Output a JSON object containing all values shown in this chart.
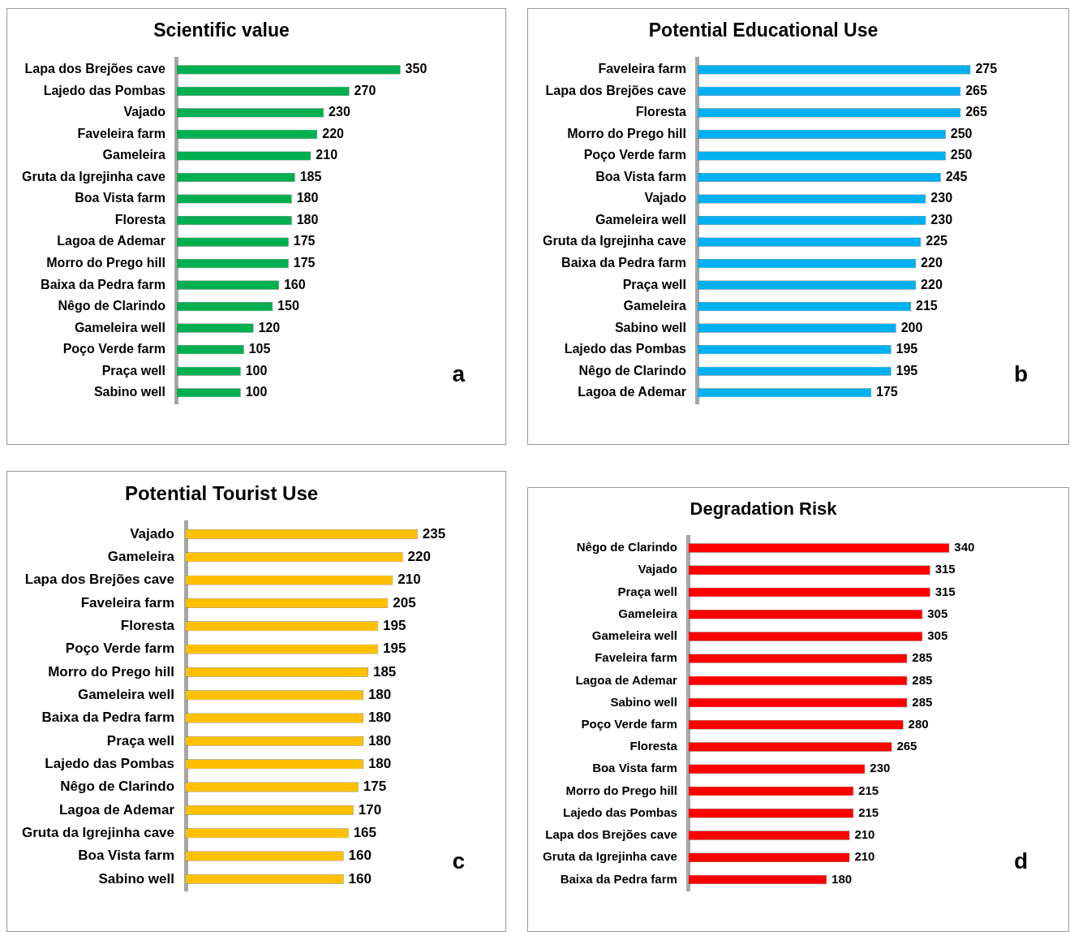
{
  "chart_data": [
    {
      "type": "bar",
      "orientation": "horizontal",
      "title": "Scientific value",
      "color": "#00b050",
      "data_labels": true,
      "tick_labels": "y",
      "annotations": [
        "a"
      ],
      "categories": [
        "Lapa dos Brejões cave",
        "Lajedo das Pombas",
        "Vajado",
        "Faveleira farm",
        "Gameleira",
        "Gruta da Igrejinha cave",
        "Boa Vista farm",
        "Floresta",
        "Lagoa de Ademar",
        "Morro do Prego hill",
        "Baixa da Pedra farm",
        "Nêgo de Clarindo",
        "Gameleira well",
        "Poço Verde farm",
        "Praça well",
        "Sabino well"
      ],
      "values": [
        350,
        270,
        230,
        220,
        210,
        185,
        180,
        180,
        175,
        175,
        160,
        150,
        120,
        105,
        100,
        100
      ]
    },
    {
      "type": "bar",
      "orientation": "horizontal",
      "title": "Potential Educational Use",
      "color": "#00b0f0",
      "data_labels": true,
      "tick_labels": "y",
      "annotations": [
        "b"
      ],
      "categories": [
        "Faveleira farm",
        "Lapa dos Brejões cave",
        "Floresta",
        "Morro do Prego hill",
        "Poço Verde farm",
        "Boa Vista farm",
        "Vajado",
        "Gameleira well",
        "Gruta da Igrejinha cave",
        "Baixa da Pedra farm",
        "Praça well",
        "Gameleira",
        "Sabino well",
        "Lajedo das Pombas",
        "Nêgo de Clarindo",
        "Lagoa de Ademar"
      ],
      "values": [
        275,
        265,
        265,
        250,
        250,
        245,
        230,
        230,
        225,
        220,
        220,
        215,
        200,
        195,
        195,
        175
      ]
    },
    {
      "type": "bar",
      "orientation": "horizontal",
      "title": "Potential Tourist Use",
      "color": "#ffc000",
      "data_labels": true,
      "tick_labels": "y",
      "annotations": [
        "c"
      ],
      "categories": [
        "Vajado",
        "Gameleira",
        "Lapa dos Brejões cave",
        "Faveleira farm",
        "Floresta",
        "Poço Verde farm",
        "Morro do Prego hill",
        "Gameleira well",
        "Baixa da Pedra farm",
        "Praça well",
        "Lajedo das Pombas",
        "Nêgo de Clarindo",
        "Lagoa de Ademar",
        "Gruta da Igrejinha cave",
        "Boa Vista farm",
        "Sabino well"
      ],
      "values": [
        235,
        220,
        210,
        205,
        195,
        195,
        185,
        180,
        180,
        180,
        180,
        175,
        170,
        165,
        160,
        160
      ]
    },
    {
      "type": "bar",
      "orientation": "horizontal",
      "title": "Degradation Risk",
      "color": "#ff0000",
      "data_labels": true,
      "tick_labels": "y",
      "annotations": [
        "d"
      ],
      "categories": [
        "Nêgo de Clarindo",
        "Vajado",
        "Praça well",
        "Gameleira",
        "Gameleira well",
        "Faveleira farm",
        "Lagoa de Ademar",
        "Sabino well",
        "Poço Verde farm",
        "Floresta",
        "Boa Vista farm",
        "Morro do Prego hill",
        "Lajedo das Pombas",
        "Lapa dos Brejões cave",
        "Gruta da Igrejinha cave",
        "Baixa da Pedra farm"
      ],
      "values": [
        340,
        315,
        315,
        305,
        305,
        285,
        285,
        285,
        280,
        265,
        230,
        215,
        215,
        210,
        210,
        180
      ]
    }
  ]
}
